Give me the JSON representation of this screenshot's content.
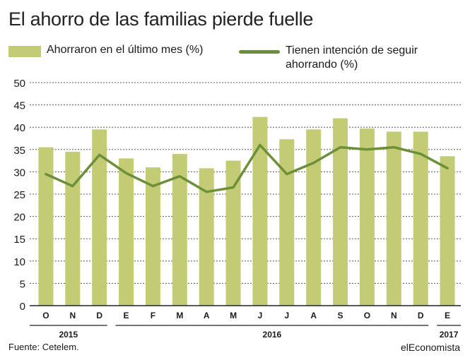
{
  "title": "El ahorro de las familias pierde fuelle",
  "legend": {
    "bars_label": "Ahorraron en el último mes (%)",
    "line_label": "Tienen intención de seguir ahorrando (%)"
  },
  "colors": {
    "bar": "#c3cc74",
    "line": "#6e8f3a",
    "grid": "#555555",
    "text": "#1a1a1a"
  },
  "footer": {
    "source": "Fuente: Cetelem.",
    "brand": "elEconomista"
  },
  "chart_data": {
    "type": "bar",
    "categories": [
      "O",
      "N",
      "D",
      "E",
      "F",
      "M",
      "A",
      "M",
      "J",
      "J",
      "A",
      "S",
      "O",
      "N",
      "D",
      "E"
    ],
    "year_groups": [
      {
        "label": "2015",
        "start": 0,
        "end": 2
      },
      {
        "label": "2016",
        "start": 3,
        "end": 14
      },
      {
        "label": "2017",
        "start": 15,
        "end": 15
      }
    ],
    "series": [
      {
        "name": "Ahorraron en el último mes (%)",
        "kind": "bar",
        "values": [
          35.5,
          34.5,
          39.5,
          33,
          31,
          34,
          30.8,
          32.5,
          42.3,
          37.3,
          39.5,
          42,
          39.7,
          39,
          39,
          33.5
        ]
      },
      {
        "name": "Tienen intención de seguir ahorrando (%)",
        "kind": "line",
        "values": [
          29.5,
          26.8,
          33.8,
          29.7,
          26.8,
          29,
          25.5,
          26.5,
          36,
          29.5,
          32,
          35.5,
          35,
          35.5,
          34,
          30.8
        ]
      }
    ],
    "ylim": [
      0,
      50
    ],
    "yticks": [
      0,
      5,
      10,
      15,
      20,
      25,
      30,
      35,
      40,
      45,
      50
    ],
    "grid": "dashed-horizontal",
    "legend_position": "top"
  }
}
